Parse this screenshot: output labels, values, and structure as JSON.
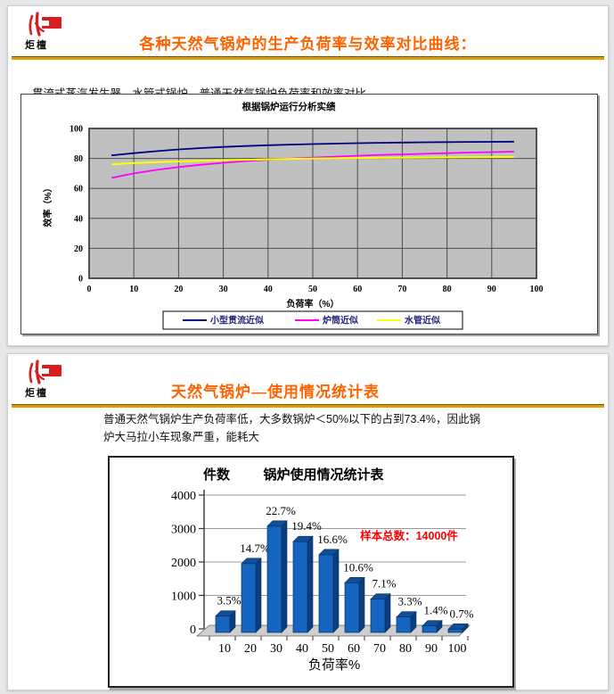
{
  "logo": {
    "text": "炬檀",
    "color": "#d81e1e"
  },
  "colors": {
    "title_accent": "#ff6200",
    "rule_gold": "#dc9d06",
    "annotation_red": "#ff0000",
    "plot_gray": "#c0c0c0"
  },
  "slide1": {
    "title": "各种天然气锅炉的生产负荷率与效率对比曲线：",
    "subtitle": "贯流式蒸汽发生器、水管式锅炉、普通天然气锅炉负荷率和效率对比"
  },
  "slide2": {
    "title": "天然气锅炉—使用情况统计表",
    "body_line1": "普通天然气锅炉生产负荷率低，大多数锅炉＜50%以下的占到73.4%，因此锅",
    "body_line2": "炉大马拉小车现象严重，能耗大"
  },
  "chart_data": [
    {
      "type": "line",
      "title": "根据锅炉运行分析实绩",
      "xlabel": "负荷率（%）",
      "ylabel": "效率（%）",
      "xlim": [
        0,
        100
      ],
      "ylim": [
        0,
        100
      ],
      "xticks": [
        0,
        10,
        20,
        30,
        40,
        50,
        60,
        70,
        80,
        90,
        100
      ],
      "yticks": [
        0,
        20,
        40,
        60,
        80,
        100
      ],
      "grid": true,
      "plot_bg": "#c0c0c0",
      "legend_position": "bottom",
      "x": [
        5,
        10,
        15,
        20,
        25,
        30,
        35,
        40,
        45,
        50,
        55,
        60,
        65,
        70,
        75,
        80,
        85,
        90,
        95
      ],
      "series": [
        {
          "name": "小型贯流近似",
          "color": "#000080",
          "y": [
            82,
            83.5,
            84.8,
            86,
            86.9,
            87.7,
            88.3,
            88.8,
            89.2,
            89.6,
            89.9,
            90.2,
            90.4,
            90.6,
            90.8,
            90.9,
            91,
            91.1,
            91.2
          ]
        },
        {
          "name": "炉筒近似",
          "color": "#ff00ff",
          "y": [
            67,
            70,
            72.3,
            74.2,
            75.8,
            77.1,
            78.2,
            79.1,
            79.9,
            80.6,
            81.2,
            81.8,
            82.3,
            82.7,
            83.1,
            83.5,
            83.9,
            84.2,
            84.5
          ]
        },
        {
          "name": "水管近似",
          "color": "#ffff00",
          "y": [
            76,
            76.9,
            77.5,
            78,
            78.4,
            78.8,
            79.1,
            79.4,
            79.7,
            79.9,
            80.1,
            80.3,
            80.4,
            80.5,
            80.6,
            80.7,
            80.8,
            80.9,
            81
          ]
        }
      ]
    },
    {
      "type": "bar",
      "title": "锅炉使用情况统计表",
      "xlabel": "负荷率%",
      "ylabel": "件数",
      "categories": [
        "10",
        "20",
        "30",
        "40",
        "50",
        "60",
        "70",
        "80",
        "90",
        "100"
      ],
      "values": [
        490,
        2058,
        3178,
        2716,
        2324,
        1484,
        994,
        462,
        196,
        98
      ],
      "percent_labels": [
        "3.5%",
        "14.7%",
        "22.7%",
        "19.4%",
        "16.6%",
        "10.6%",
        "7.1%",
        "3.3%",
        "1.4%",
        "0.7%"
      ],
      "annotation": "样本总数：14000件",
      "annotation_color": "#ff0000",
      "ylim": [
        0,
        4000
      ],
      "yticks": [
        0,
        1000,
        2000,
        3000,
        4000
      ],
      "grid": true,
      "legend_position": "none",
      "bar_color": "#1565c0",
      "bar_side_color": "#0c3e7d",
      "bar_top_color": "#0f4f9c"
    }
  ]
}
